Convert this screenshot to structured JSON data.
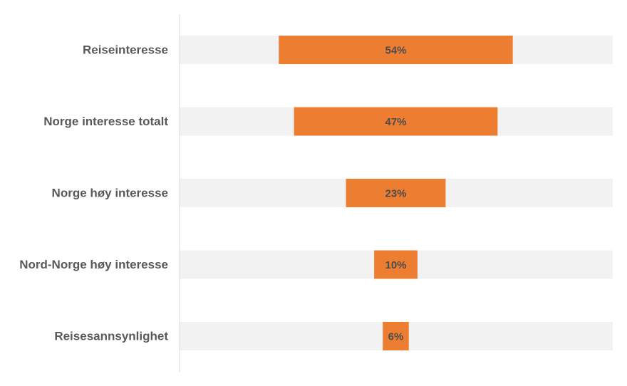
{
  "chart_data": {
    "type": "bar",
    "orientation": "horizontal",
    "layout": "centered",
    "categories": [
      "Reiseinteresse",
      "Norge interesse totalt",
      "Norge høy interesse",
      "Nord-Norge høy interesse",
      "Reisesannsynlighet"
    ],
    "values": [
      54,
      47,
      23,
      10,
      6
    ],
    "value_labels": [
      "54%",
      "47%",
      "23%",
      "10%",
      "6%"
    ],
    "xlim": [
      0,
      100
    ],
    "grid": false,
    "legend": "none",
    "title": "",
    "xlabel": "",
    "ylabel": ""
  },
  "colors": {
    "bar": "#ED7D31",
    "track": "#F2F2F2",
    "axis": "#D9D9D9",
    "label": "#595959",
    "value_label": "#4D4D4D"
  }
}
